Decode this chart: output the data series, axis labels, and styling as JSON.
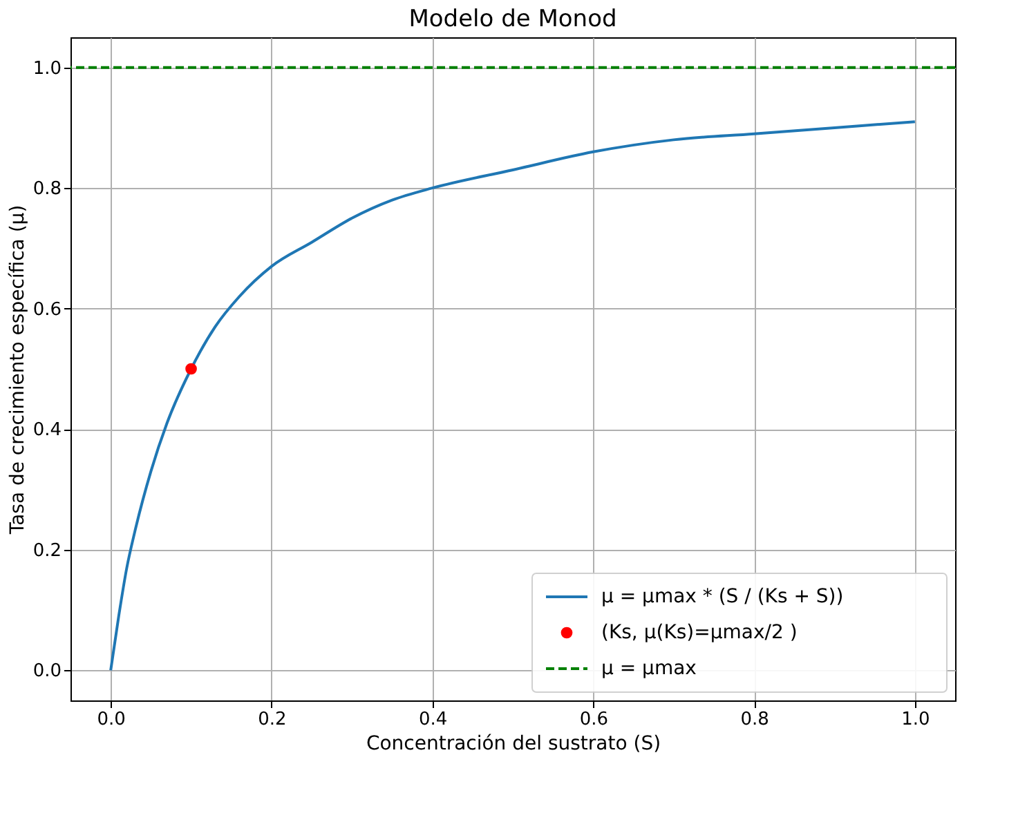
{
  "chart_data": {
    "type": "line",
    "title": "Modelo de Monod",
    "xlabel": "Concentración del sustrato (S)",
    "ylabel": "Tasa de crecimiento específica (μ)",
    "series": [
      {
        "name": "μ = μmax * (S / (Ks + S))",
        "color": "#1f77b4",
        "x": [
          0,
          0.01,
          0.02,
          0.03,
          0.05,
          0.07,
          0.1,
          0.13,
          0.16,
          0.2,
          0.25,
          0.3,
          0.35,
          0.4,
          0.5,
          0.6,
          0.7,
          0.8,
          0.9,
          1.0
        ],
        "values": [
          0,
          0.09,
          0.17,
          0.23,
          0.33,
          0.41,
          0.5,
          0.57,
          0.62,
          0.67,
          0.71,
          0.75,
          0.78,
          0.8,
          0.83,
          0.86,
          0.88,
          0.89,
          0.9,
          0.91
        ]
      },
      {
        "name": "(Ks, μ(Ks)=μmax/2 )",
        "type": "scatter",
        "color": "#ff0000",
        "marker": "circle",
        "x": [
          0.1
        ],
        "values": [
          0.5
        ]
      }
    ],
    "ref_lines": [
      {
        "axis": "y",
        "value": 1.0,
        "label": "μ = μmax",
        "color": "#008000",
        "line_style": "dashed"
      }
    ],
    "xlim": [
      -0.05,
      1.05
    ],
    "xticks": [
      {
        "value": 0,
        "label": "0.0"
      },
      0.2,
      0.4,
      0.6,
      0.8,
      {
        "value": 1,
        "label": "1.0"
      }
    ],
    "ylim": [
      -0.05,
      1.05
    ],
    "yticks": [
      {
        "value": 0,
        "label": "0.0"
      },
      0.2,
      0.4,
      0.6,
      0.8,
      {
        "value": 1,
        "label": "1.0"
      }
    ],
    "grid": true,
    "legend": "bottom right"
  }
}
